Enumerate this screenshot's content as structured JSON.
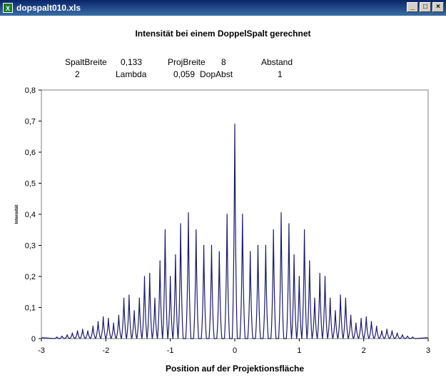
{
  "window": {
    "title": "dopspalt010.xls",
    "minimize_label": "_",
    "restore_label": "□",
    "close_label": "×",
    "icon": "excel-icon"
  },
  "info_table": {
    "row1": [
      "SpaltBreite",
      "0,133",
      "ProjBreite",
      "8",
      "Abstand"
    ],
    "row2": [
      "2",
      "Lambda",
      "0,059",
      "DopAbst",
      "1"
    ]
  },
  "chart_data": {
    "type": "line",
    "title": "Intensität bei einem DoppelSpalt gerechnet",
    "xlabel": "Position auf der Projektionsfläche",
    "ylabel": "Intensität",
    "xlim": [
      -3,
      3
    ],
    "ylim": [
      0,
      0.8
    ],
    "x_ticks": [
      "-3",
      "-2",
      "-1",
      "0",
      "1",
      "2",
      "3"
    ],
    "y_ticks": [
      "0",
      "0,1",
      "0,2",
      "0,3",
      "0,4",
      "0,5",
      "0,6",
      "0,7",
      "0,8"
    ],
    "series_color": "#1a1a6e",
    "peaks": [
      {
        "x": -2.76,
        "y": 0.005
      },
      {
        "x": -2.68,
        "y": 0.008
      },
      {
        "x": -2.6,
        "y": 0.012
      },
      {
        "x": -2.52,
        "y": 0.018
      },
      {
        "x": -2.44,
        "y": 0.025
      },
      {
        "x": -2.36,
        "y": 0.03
      },
      {
        "x": -2.28,
        "y": 0.025
      },
      {
        "x": -2.2,
        "y": 0.04
      },
      {
        "x": -2.12,
        "y": 0.055
      },
      {
        "x": -2.04,
        "y": 0.07
      },
      {
        "x": -1.96,
        "y": 0.065
      },
      {
        "x": -1.88,
        "y": 0.05
      },
      {
        "x": -1.8,
        "y": 0.075
      },
      {
        "x": -1.72,
        "y": 0.13
      },
      {
        "x": -1.64,
        "y": 0.14
      },
      {
        "x": -1.56,
        "y": 0.09
      },
      {
        "x": -1.48,
        "y": 0.13
      },
      {
        "x": -1.4,
        "y": 0.2
      },
      {
        "x": -1.32,
        "y": 0.21
      },
      {
        "x": -1.24,
        "y": 0.13
      },
      {
        "x": -1.16,
        "y": 0.25
      },
      {
        "x": -1.08,
        "y": 0.35
      },
      {
        "x": -1.0,
        "y": 0.2
      },
      {
        "x": -0.92,
        "y": 0.27
      },
      {
        "x": -0.84,
        "y": 0.37
      },
      {
        "x": -0.72,
        "y": 0.405
      },
      {
        "x": -0.6,
        "y": 0.35
      },
      {
        "x": -0.48,
        "y": 0.3
      },
      {
        "x": -0.36,
        "y": 0.3
      },
      {
        "x": -0.24,
        "y": 0.28
      },
      {
        "x": -0.12,
        "y": 0.4
      },
      {
        "x": 0.0,
        "y": 0.69
      },
      {
        "x": 0.12,
        "y": 0.4
      },
      {
        "x": 0.24,
        "y": 0.28
      },
      {
        "x": 0.36,
        "y": 0.3
      },
      {
        "x": 0.48,
        "y": 0.3
      },
      {
        "x": 0.6,
        "y": 0.35
      },
      {
        "x": 0.72,
        "y": 0.405
      },
      {
        "x": 0.84,
        "y": 0.37
      },
      {
        "x": 0.92,
        "y": 0.27
      },
      {
        "x": 1.0,
        "y": 0.2
      },
      {
        "x": 1.08,
        "y": 0.35
      },
      {
        "x": 1.16,
        "y": 0.25
      },
      {
        "x": 1.24,
        "y": 0.13
      },
      {
        "x": 1.32,
        "y": 0.21
      },
      {
        "x": 1.4,
        "y": 0.2
      },
      {
        "x": 1.48,
        "y": 0.13
      },
      {
        "x": 1.56,
        "y": 0.09
      },
      {
        "x": 1.64,
        "y": 0.14
      },
      {
        "x": 1.72,
        "y": 0.13
      },
      {
        "x": 1.8,
        "y": 0.075
      },
      {
        "x": 1.88,
        "y": 0.05
      },
      {
        "x": 1.96,
        "y": 0.065
      },
      {
        "x": 2.04,
        "y": 0.07
      },
      {
        "x": 2.12,
        "y": 0.055
      },
      {
        "x": 2.2,
        "y": 0.04
      },
      {
        "x": 2.28,
        "y": 0.025
      },
      {
        "x": 2.36,
        "y": 0.03
      },
      {
        "x": 2.44,
        "y": 0.025
      },
      {
        "x": 2.52,
        "y": 0.018
      },
      {
        "x": 2.6,
        "y": 0.012
      },
      {
        "x": 2.68,
        "y": 0.008
      },
      {
        "x": 2.76,
        "y": 0.005
      }
    ]
  }
}
